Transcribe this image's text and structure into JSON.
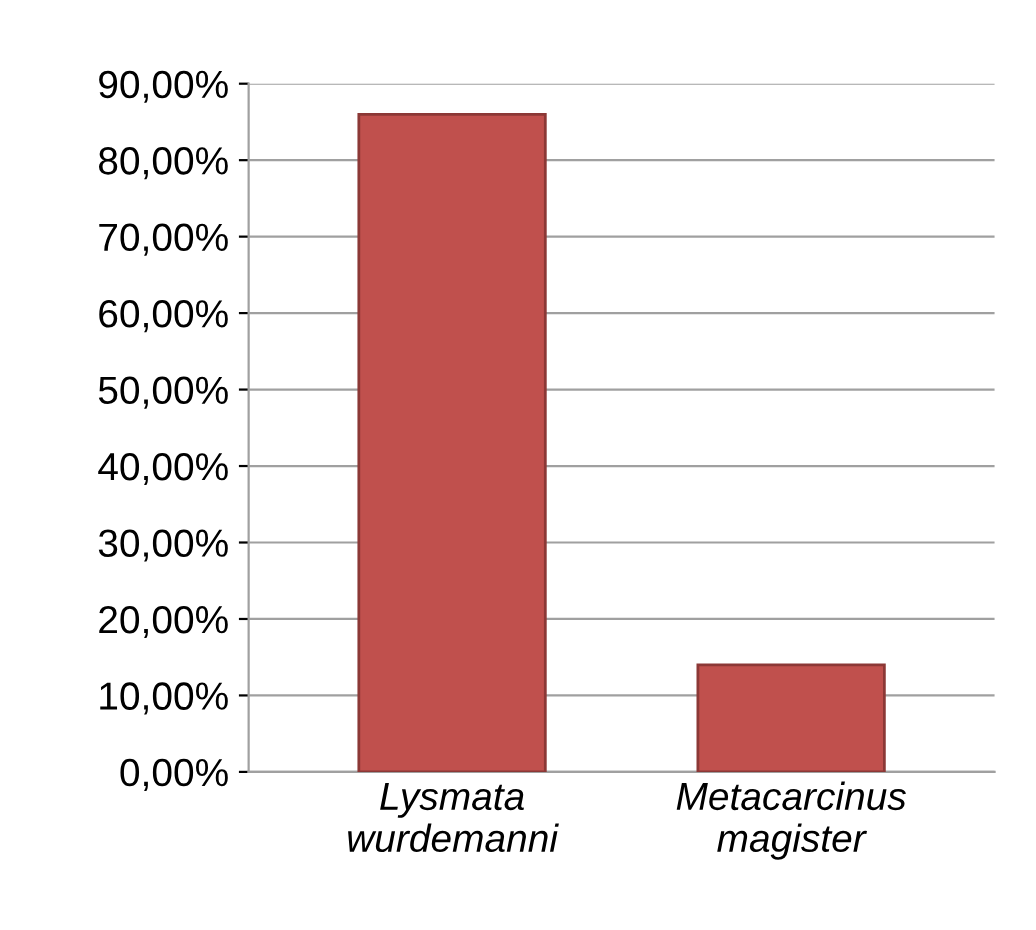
{
  "chart_data": {
    "type": "bar",
    "categories": [
      "Lysmata wurdemanni",
      "Metacarcinus magister"
    ],
    "values": [
      86,
      14
    ],
    "color": "#c0504d",
    "ylim": [
      0,
      90
    ],
    "yticks": [
      {
        "value": 0,
        "label": "0,00%"
      },
      {
        "value": 10,
        "label": "10,00%"
      },
      {
        "value": 20,
        "label": "20,00%"
      },
      {
        "value": 30,
        "label": "30,00%"
      },
      {
        "value": 40,
        "label": "40,00%"
      },
      {
        "value": 50,
        "label": "50,00%"
      },
      {
        "value": 60,
        "label": "60,00%"
      },
      {
        "value": 70,
        "label": "70,00%"
      },
      {
        "value": 80,
        "label": "80,00%"
      },
      {
        "value": 90,
        "label": "90,00%"
      }
    ],
    "grid": "y"
  }
}
